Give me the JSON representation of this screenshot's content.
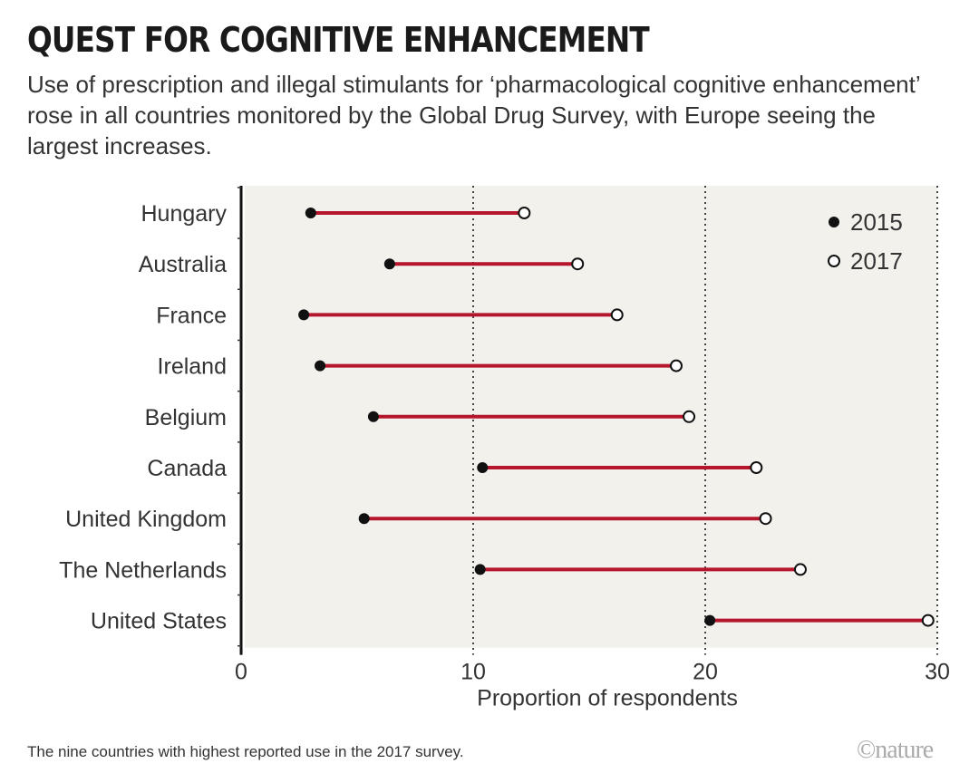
{
  "title": "QUEST FOR COGNITIVE ENHANCEMENT",
  "subtitle": "Use of prescription and illegal stimulants for ‘pharmacological cognitive enhancement’ rose in all countries monitored by the Global Drug Survey, with Europe seeing the largest increases.",
  "note": "The nine countries with highest reported use in the 2017 survey.",
  "logo": "©nature",
  "chart_data": {
    "type": "dumbbell",
    "xlabel": "Proportion of respondents",
    "xlim": [
      0,
      30
    ],
    "xticks": [
      0,
      10,
      20,
      30
    ],
    "grid": "dotted vertical at 10, 20, 30",
    "legend_position": "top-right",
    "categories": [
      "Hungary",
      "Australia",
      "France",
      "Ireland",
      "Belgium",
      "Canada",
      "United Kingdom",
      "The Netherlands",
      "United States"
    ],
    "series": [
      {
        "name": "2015",
        "marker": "filled",
        "values": [
          3.0,
          6.4,
          2.7,
          3.4,
          5.7,
          10.4,
          5.3,
          10.3,
          20.2
        ]
      },
      {
        "name": "2017",
        "marker": "open",
        "values": [
          12.2,
          14.5,
          16.2,
          18.75,
          19.3,
          22.2,
          22.6,
          24.1,
          29.6
        ]
      }
    ],
    "colors": {
      "line": "#b5162b",
      "marker": "#111111",
      "background": "#f3f1ec"
    }
  }
}
